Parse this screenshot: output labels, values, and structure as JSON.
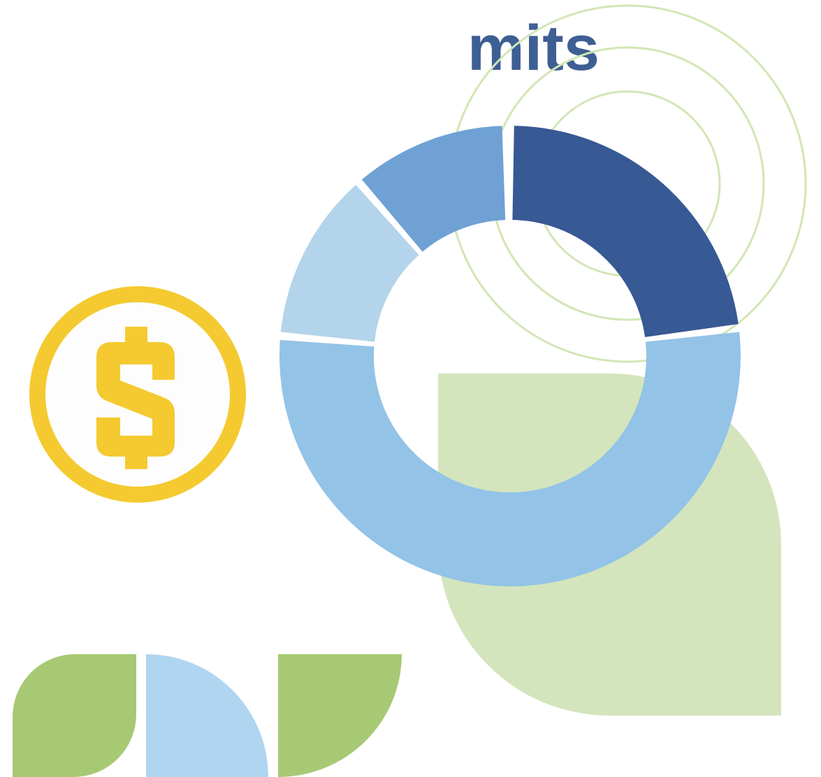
{
  "header": {
    "title": "mits"
  }
}
